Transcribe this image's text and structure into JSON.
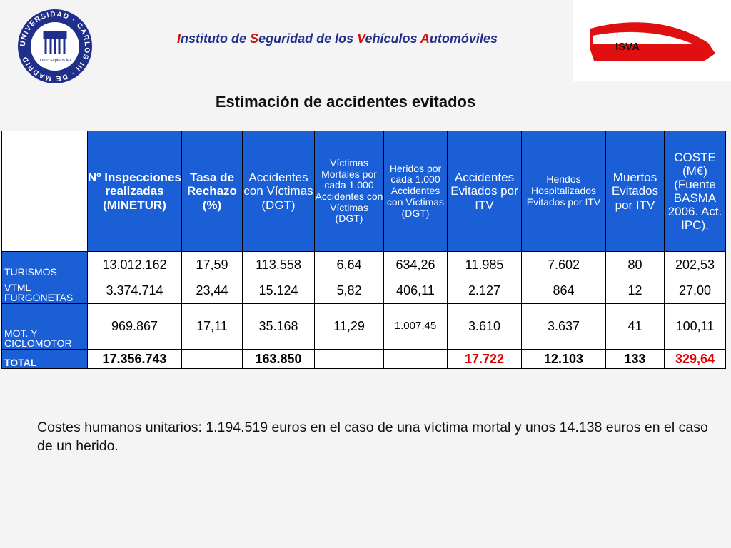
{
  "header": {
    "title": "Instituto de Seguridad de los Vehículos Automóviles",
    "seal_text": "UNIVERSIDAD · CARLOS III · DE MADRID",
    "seal_motto": "homo sapiens lex",
    "logo_text": "ISVA"
  },
  "heading": "Estimación de accidentes evitados",
  "table": {
    "columns": [
      null,
      "Nº Inspecciones realizadas (MINETUR)",
      "Tasa de Rechazo (%)",
      "Accidentes con Víctimas (DGT)",
      "Víctimas Mortales por cada 1.000 Accidentes con Víctimas (DGT)",
      "Heridos por cada 1.000 Accidentes con Víctimas (DGT)",
      "Accidentes Evitados por ITV",
      "Heridos Hospitalizados Evitados por ITV",
      "Muertos Evitados por ITV",
      "COSTE (M€) (Fuente BASMA 2006. Act. IPC)."
    ],
    "rows": [
      [
        "TURISMOS",
        "13.012.162",
        "17,59",
        "113.558",
        "6,64",
        "634,26",
        "11.985",
        "7.602",
        "80",
        "202,53"
      ],
      [
        "VTML FURGONETAS",
        "3.374.714",
        "23,44",
        "15.124",
        "5,82",
        "406,11",
        "2.127",
        "864",
        "12",
        "27,00"
      ],
      [
        "MOT. Y CICLOMOTOR",
        "969.867",
        "17,11",
        "35.168",
        "11,29",
        "1.007,45",
        "3.610",
        "3.637",
        "41",
        "100,11"
      ],
      [
        "TOTAL",
        "17.356.743",
        null,
        "163.850",
        null,
        null,
        "17.722",
        "12.103",
        "133",
        "329,64"
      ]
    ]
  },
  "note": "Costes humanos unitarios: 1.194.519 euros en el caso de una víctima mortal y unos 14.138 euros en el caso de un herido."
}
